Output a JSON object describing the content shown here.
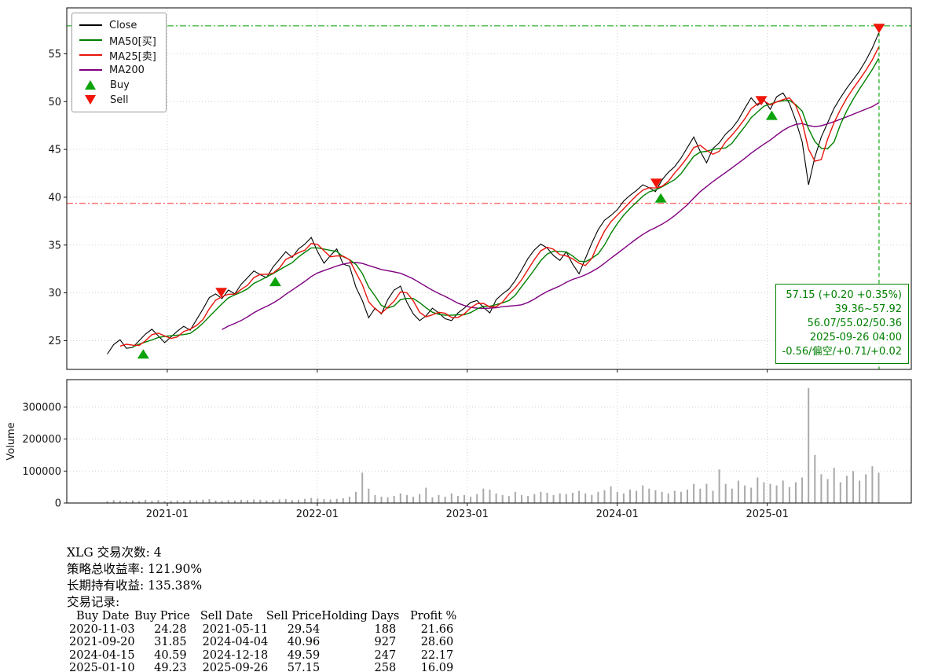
{
  "legend": {
    "items": [
      {
        "label": "Close",
        "color": "#000000",
        "type": "line"
      },
      {
        "label": "MA50[买]",
        "color": "#008000",
        "type": "line"
      },
      {
        "label": "MA25[卖]",
        "color": "#e8140c",
        "type": "line"
      },
      {
        "label": "MA200",
        "color": "#800080",
        "type": "line"
      },
      {
        "label": "Buy",
        "color": "#0ca30c",
        "type": "tri-up"
      },
      {
        "label": "Sell",
        "color": "#f01508",
        "type": "tri-down"
      }
    ]
  },
  "info_box": {
    "color": "#008000",
    "lines": [
      "57.15 (+0.20 +0.35%)",
      "39.36~57.92",
      "56.07/55.02/50.36",
      "2025-09-26 04:00",
      "-0.56/偏空/+0.71/+0.02"
    ]
  },
  "chart_data": {
    "type": "line",
    "title": "",
    "xlabel": "",
    "ylabel": "",
    "ylabel_volume": "Volume",
    "grid": true,
    "legend_position": "upper-left",
    "xlim": [
      2020.33,
      2025.96
    ],
    "ylim_price": [
      22,
      59.8
    ],
    "ylim_volume": [
      0,
      386000
    ],
    "x_ticks": [
      {
        "t": 2021.0,
        "label": "2021-01"
      },
      {
        "t": 2022.0,
        "label": "2022-01"
      },
      {
        "t": 2023.0,
        "label": "2023-01"
      },
      {
        "t": 2024.0,
        "label": "2024-01"
      },
      {
        "t": 2025.0,
        "label": "2025-01"
      }
    ],
    "price_ticks": [
      25,
      30,
      35,
      40,
      45,
      50,
      55
    ],
    "volume_ticks": [
      0,
      100000,
      200000,
      300000
    ],
    "x_start": 2020.6,
    "x_step": 0.0425,
    "series": [
      {
        "name": "Close",
        "color": "#000000",
        "values": [
          23.6,
          24.6,
          25.1,
          24.2,
          24.3,
          25.0,
          25.7,
          26.2,
          25.5,
          24.8,
          25.4,
          26.0,
          26.5,
          26.1,
          27.2,
          28.3,
          29.5,
          29.9,
          29.4,
          30.3,
          29.9,
          30.9,
          31.6,
          32.3,
          31.9,
          31.6,
          32.7,
          33.5,
          34.3,
          33.7,
          34.6,
          35.1,
          35.8,
          34.3,
          33.1,
          33.9,
          34.6,
          33.0,
          32.8,
          30.6,
          29.2,
          27.4,
          28.4,
          27.8,
          29.3,
          30.3,
          30.7,
          29.0,
          27.8,
          27.1,
          27.6,
          28.4,
          27.9,
          27.3,
          27.1,
          27.9,
          28.4,
          29.0,
          29.2,
          28.5,
          27.9,
          29.3,
          29.9,
          30.4,
          31.3,
          32.4,
          33.6,
          34.5,
          35.1,
          34.7,
          33.9,
          33.4,
          34.3,
          33.0,
          32.0,
          33.6,
          35.2,
          36.6,
          37.6,
          38.1,
          38.7,
          39.6,
          40.2,
          40.7,
          41.3,
          41.0,
          40.6,
          41.8,
          42.6,
          43.2,
          44.1,
          45.2,
          46.3,
          44.8,
          43.6,
          45.1,
          45.7,
          46.6,
          47.2,
          48.1,
          49.3,
          50.4,
          49.6,
          50.2,
          49.2,
          50.5,
          50.9,
          49.8,
          48.0,
          45.8,
          41.3,
          44.2,
          46.3,
          47.8,
          49.3,
          50.4,
          51.4,
          52.3,
          53.2,
          54.3,
          55.6,
          57.15
        ]
      }
    ],
    "moving_averages": [
      {
        "name": "MA200",
        "color": "#800080",
        "window_points": 19
      },
      {
        "name": "MA50",
        "color": "#008000",
        "window_points": 5
      },
      {
        "name": "MA25",
        "color": "#e8140c",
        "window_points": 3
      }
    ],
    "volume": {
      "color": "#a9a9a9",
      "values": [
        6000,
        9000,
        7000,
        5000,
        8000,
        6000,
        10000,
        7000,
        9000,
        6000,
        7000,
        8000,
        6000,
        9000,
        8000,
        10000,
        12000,
        8000,
        7000,
        9000,
        8000,
        10000,
        9000,
        11000,
        10000,
        8000,
        9000,
        11000,
        12000,
        9000,
        10000,
        13000,
        16000,
        14000,
        12000,
        11000,
        13000,
        15000,
        20000,
        35000,
        95000,
        45000,
        25000,
        20000,
        18000,
        22000,
        30000,
        25000,
        20000,
        28000,
        48000,
        18000,
        25000,
        20000,
        30000,
        22000,
        25000,
        20000,
        28000,
        45000,
        42000,
        30000,
        25000,
        22000,
        35000,
        25000,
        22000,
        28000,
        35000,
        32000,
        25000,
        30000,
        28000,
        32000,
        38000,
        30000,
        25000,
        35000,
        40000,
        52000,
        35000,
        30000,
        42000,
        38000,
        55000,
        45000,
        40000,
        35000,
        30000,
        38000,
        35000,
        42000,
        60000,
        45000,
        60000,
        38000,
        105000,
        60000,
        45000,
        70000,
        55000,
        48000,
        80000,
        65000,
        60000,
        55000,
        70000,
        50000,
        65000,
        80000,
        360000,
        150000,
        90000,
        75000,
        110000,
        65000,
        85000,
        100000,
        70000,
        90000,
        115000,
        95000
      ]
    },
    "buy_color": "#0ca30c",
    "sell_color": "#f01508",
    "buy_signals": [
      {
        "date": "2020-11-03",
        "t": 2020.84,
        "price": 24.28
      },
      {
        "date": "2021-09-20",
        "t": 2021.72,
        "price": 31.85
      },
      {
        "date": "2024-04-15",
        "t": 2024.29,
        "price": 40.59
      },
      {
        "date": "2025-01-10",
        "t": 2025.03,
        "price": 49.23
      }
    ],
    "sell_signals": [
      {
        "date": "2021-05-11",
        "t": 2021.36,
        "price": 29.54
      },
      {
        "date": "2024-04-04",
        "t": 2024.26,
        "price": 40.96
      },
      {
        "date": "2024-12-18",
        "t": 2024.96,
        "price": 49.59
      },
      {
        "date": "2025-09-26",
        "t": 2025.745,
        "price": 57.15
      }
    ],
    "hlines": [
      {
        "value": 57.92,
        "color": "#00a000",
        "style": "dashdot"
      },
      {
        "value": 39.36,
        "color": "#ff3030",
        "style": "dashdot"
      }
    ],
    "vlines": [
      {
        "t": 2025.745,
        "color": "#00a000",
        "style": "dashed"
      }
    ]
  },
  "summary": {
    "line1": "XLG 交易次数: 4",
    "line2": "策略总收益率: 121.90%",
    "line3": "长期持有收益: 135.38%",
    "line4": "交易记录:"
  },
  "trades_table": {
    "headers": [
      "Buy Date",
      "Buy Price",
      "Sell Date",
      "Sell Price",
      "Holding Days",
      "Profit %"
    ],
    "rows": [
      [
        "2020-11-03",
        "24.28",
        "2021-05-11",
        "29.54",
        "188",
        "21.66"
      ],
      [
        "2021-09-20",
        "31.85",
        "2024-04-04",
        "40.96",
        "927",
        "28.60"
      ],
      [
        "2024-04-15",
        "40.59",
        "2024-12-18",
        "49.59",
        "247",
        "22.17"
      ],
      [
        "2025-01-10",
        "49.23",
        "2025-09-26",
        "57.15",
        "258",
        "16.09"
      ]
    ]
  }
}
